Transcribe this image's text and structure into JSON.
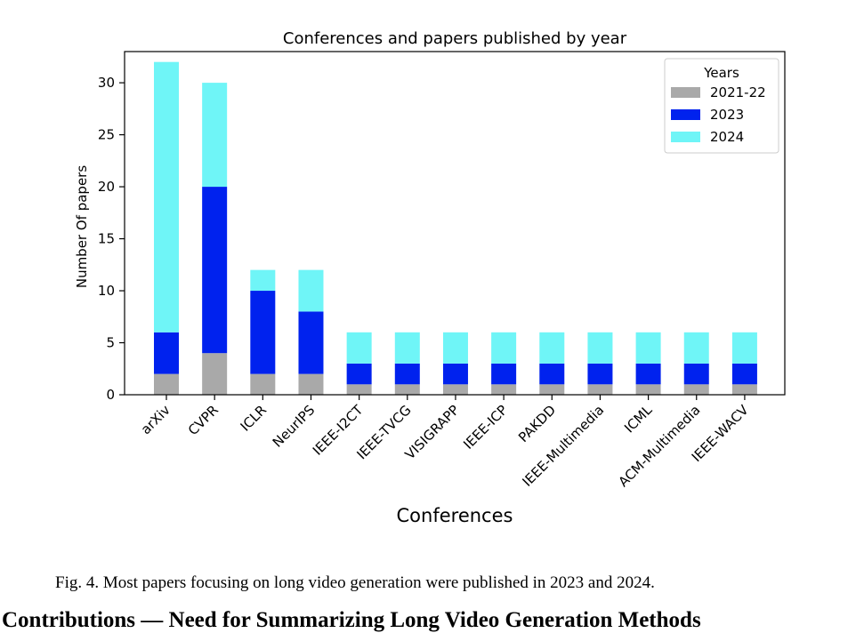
{
  "chart_data": {
    "type": "bar",
    "stacked": true,
    "title": "Conferences and papers published by year",
    "xlabel": "Conferences",
    "ylabel": "Number Of papers",
    "categories": [
      "arXiv",
      "CVPR",
      "ICLR",
      "NeurIPS",
      "IEEE-I2CT",
      "IEEE-TVCG",
      "VISIGRAPP",
      "IEEE-ICP",
      "PAKDD",
      "IEEE-Multimedia",
      "ICML",
      "ACM-Multimedia",
      "IEEE-WACV"
    ],
    "series": [
      {
        "name": "2021-22",
        "color": "#a9a9a9",
        "values": [
          2,
          4,
          2,
          2,
          1,
          1,
          1,
          1,
          1,
          1,
          1,
          1,
          1
        ]
      },
      {
        "name": "2023",
        "color": "#0022ee",
        "values": [
          4,
          16,
          8,
          6,
          2,
          2,
          2,
          2,
          2,
          2,
          2,
          2,
          2
        ]
      },
      {
        "name": "2024",
        "color": "#6ff5f7",
        "values": [
          26,
          10,
          2,
          4,
          3,
          3,
          3,
          3,
          3,
          3,
          3,
          3,
          3
        ]
      }
    ],
    "ylim": [
      0,
      33
    ],
    "yticks": [
      0,
      5,
      10,
      15,
      20,
      25,
      30
    ],
    "legend": {
      "title": "Years",
      "placement": "top-right"
    },
    "grid": false
  },
  "caption": "Fig. 4.  Most papers focusing on long video generation were published in 2023 and 2024.",
  "next_heading": "Contributions — Need for Summarizing Long Video Generation Methods"
}
